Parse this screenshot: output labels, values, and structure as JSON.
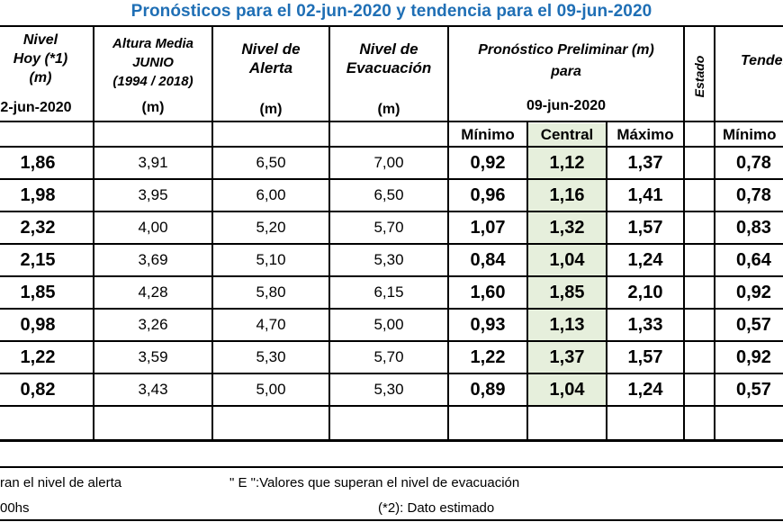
{
  "title": "Pronósticos para el 02-jun-2020 y tendencia para el 09-jun-2020",
  "headers": {
    "nivel_hoy": [
      "Nivel",
      "Hoy (*1)",
      "(m)"
    ],
    "nivel_hoy_date": "2-jun-2020",
    "altura_media": [
      "Altura Media",
      "JUNIO",
      "(1994 / 2018)"
    ],
    "alerta": [
      "Nivel de",
      "Alerta"
    ],
    "evacuacion": [
      "Nivel de",
      "Evacuación"
    ],
    "unit": "(m)",
    "pronostico": [
      "Pronóstico Preliminar (m)",
      "para"
    ],
    "pronostico_date": "09-jun-2020",
    "estado": "Estado",
    "tendencia": "Tendencia",
    "sub_minimo": "Mínimo",
    "sub_central": "Central",
    "sub_maximo": "Máximo"
  },
  "rows": [
    {
      "hoy": "1,86",
      "media": "3,91",
      "alerta": "6,50",
      "evac": "7,00",
      "min": "0,92",
      "central": "1,12",
      "max": "1,37",
      "tmin": "0,78"
    },
    {
      "hoy": "1,98",
      "media": "3,95",
      "alerta": "6,00",
      "evac": "6,50",
      "min": "0,96",
      "central": "1,16",
      "max": "1,41",
      "tmin": "0,78"
    },
    {
      "hoy": "2,32",
      "media": "4,00",
      "alerta": "5,20",
      "evac": "5,70",
      "min": "1,07",
      "central": "1,32",
      "max": "1,57",
      "tmin": "0,83"
    },
    {
      "hoy": "2,15",
      "media": "3,69",
      "alerta": "5,10",
      "evac": "5,30",
      "min": "0,84",
      "central": "1,04",
      "max": "1,24",
      "tmin": "0,64"
    },
    {
      "hoy": "1,85",
      "media": "4,28",
      "alerta": "5,80",
      "evac": "6,15",
      "min": "1,60",
      "central": "1,85",
      "max": "2,10",
      "tmin": "0,92"
    },
    {
      "hoy": "0,98",
      "media": "3,26",
      "alerta": "4,70",
      "evac": "5,00",
      "min": "0,93",
      "central": "1,13",
      "max": "1,33",
      "tmin": "0,57"
    },
    {
      "hoy": "1,22",
      "media": "3,59",
      "alerta": "5,30",
      "evac": "5,70",
      "min": "1,22",
      "central": "1,37",
      "max": "1,57",
      "tmin": "0,92"
    },
    {
      "hoy": "0,82",
      "media": "3,43",
      "alerta": "5,00",
      "evac": "5,30",
      "min": "0,89",
      "central": "1,04",
      "max": "1,24",
      "tmin": "0,57"
    }
  ],
  "footer": {
    "left1": "ran el nivel de alerta",
    "right1": "\" E \":Valores que superan el nivel de evacuación",
    "left2": "00hs",
    "right2": "(*2): Dato estimado"
  }
}
